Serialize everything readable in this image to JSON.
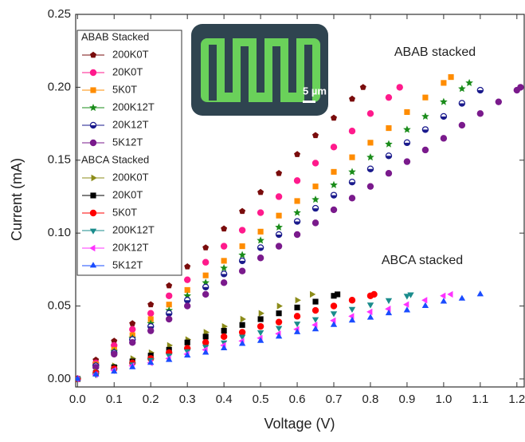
{
  "chart_data": {
    "type": "scatter",
    "xlabel": "Voltage (V)",
    "ylabel": "Current (mA)",
    "xlim": [
      -0.005,
      1.22
    ],
    "ylim": [
      -0.0055,
      0.25
    ],
    "xticks": [
      {
        "value": 0,
        "label": "0.0"
      },
      {
        "value": 0.1,
        "label": "0.1"
      },
      {
        "value": 0.2,
        "label": "0.2"
      },
      {
        "value": 0.3,
        "label": "0.3"
      },
      {
        "value": 0.4,
        "label": "0.4"
      },
      {
        "value": 0.5,
        "label": "0.5"
      },
      {
        "value": 0.6,
        "label": "0.6"
      },
      {
        "value": 0.7,
        "label": "0.7"
      },
      {
        "value": 0.8,
        "label": "0.8"
      },
      {
        "value": 0.9,
        "label": "0.9"
      },
      {
        "value": 1.0,
        "label": "1.0"
      },
      {
        "value": 1.1,
        "label": "1.1"
      },
      {
        "value": 1.2,
        "label": "1.2"
      }
    ],
    "yticks": [
      {
        "value": 0,
        "label": "0.00"
      },
      {
        "value": 0.05,
        "label": "0.05"
      },
      {
        "value": 0.1,
        "label": "0.10"
      },
      {
        "value": 0.15,
        "label": "0.15"
      },
      {
        "value": 0.2,
        "label": "0.20"
      },
      {
        "value": 0.25,
        "label": "0.25"
      }
    ],
    "annotations": [
      "ABAB stacked",
      "ABCA stacked",
      "5 µm"
    ],
    "series_groups": [
      {
        "title": "ABAB Stacked",
        "series": [
          {
            "name": "200K0T",
            "color": "#7a0c0c",
            "marker": "pentagon",
            "x": [
              0,
              0.05,
              0.1,
              0.15,
              0.2,
              0.25,
              0.3,
              0.35,
              0.4,
              0.45,
              0.5,
              0.55,
              0.6,
              0.65,
              0.7,
              0.75,
              0.78
            ],
            "values": [
              0,
              0.013,
              0.026,
              0.038,
              0.051,
              0.064,
              0.077,
              0.09,
              0.103,
              0.115,
              0.128,
              0.141,
              0.154,
              0.167,
              0.179,
              0.192,
              0.2
            ]
          },
          {
            "name": "20K0T",
            "color": "#ff1a8c",
            "marker": "circle",
            "x": [
              0,
              0.05,
              0.1,
              0.15,
              0.2,
              0.25,
              0.3,
              0.35,
              0.4,
              0.45,
              0.5,
              0.55,
              0.6,
              0.65,
              0.7,
              0.75,
              0.8,
              0.85,
              0.88
            ],
            "values": [
              0,
              0.011,
              0.023,
              0.034,
              0.045,
              0.057,
              0.068,
              0.08,
              0.091,
              0.102,
              0.114,
              0.125,
              0.136,
              0.148,
              0.159,
              0.17,
              0.182,
              0.193,
              0.2
            ]
          },
          {
            "name": "5K0T",
            "color": "#ff8c00",
            "marker": "square",
            "x": [
              0,
              0.05,
              0.1,
              0.15,
              0.2,
              0.25,
              0.3,
              0.35,
              0.4,
              0.45,
              0.5,
              0.55,
              0.6,
              0.65,
              0.7,
              0.75,
              0.8,
              0.85,
              0.9,
              0.95,
              1.0,
              1.02
            ],
            "values": [
              0,
              0.01,
              0.02,
              0.03,
              0.041,
              0.051,
              0.061,
              0.071,
              0.081,
              0.091,
              0.101,
              0.112,
              0.122,
              0.132,
              0.142,
              0.152,
              0.162,
              0.172,
              0.183,
              0.193,
              0.203,
              0.207
            ]
          },
          {
            "name": "200K12T",
            "color": "#1a8c1a",
            "marker": "star",
            "x": [
              0,
              0.05,
              0.1,
              0.15,
              0.2,
              0.25,
              0.3,
              0.35,
              0.4,
              0.45,
              0.5,
              0.55,
              0.6,
              0.65,
              0.7,
              0.75,
              0.8,
              0.85,
              0.9,
              0.95,
              1.0,
              1.05,
              1.07
            ],
            "values": [
              0,
              0.009,
              0.019,
              0.028,
              0.038,
              0.047,
              0.057,
              0.066,
              0.076,
              0.085,
              0.095,
              0.104,
              0.114,
              0.123,
              0.133,
              0.142,
              0.152,
              0.161,
              0.171,
              0.18,
              0.19,
              0.199,
              0.203
            ]
          },
          {
            "name": "20K12T",
            "color": "#1a1a8c",
            "marker": "halfcircle",
            "x": [
              0,
              0.05,
              0.1,
              0.15,
              0.2,
              0.25,
              0.3,
              0.35,
              0.4,
              0.45,
              0.5,
              0.55,
              0.6,
              0.65,
              0.7,
              0.75,
              0.8,
              0.85,
              0.9,
              0.95,
              1.0,
              1.05,
              1.1
            ],
            "values": [
              0,
              0.009,
              0.018,
              0.027,
              0.036,
              0.045,
              0.054,
              0.063,
              0.072,
              0.081,
              0.09,
              0.099,
              0.108,
              0.117,
              0.126,
              0.135,
              0.144,
              0.153,
              0.162,
              0.171,
              0.18,
              0.189,
              0.198
            ]
          },
          {
            "name": "5K12T",
            "color": "#7a1a8c",
            "marker": "circle",
            "x": [
              0,
              0.05,
              0.1,
              0.15,
              0.2,
              0.25,
              0.3,
              0.35,
              0.4,
              0.45,
              0.5,
              0.55,
              0.6,
              0.65,
              0.7,
              0.75,
              0.8,
              0.85,
              0.9,
              0.95,
              1.0,
              1.05,
              1.1,
              1.15,
              1.2,
              1.21
            ],
            "values": [
              0,
              0.008,
              0.017,
              0.025,
              0.033,
              0.041,
              0.05,
              0.058,
              0.066,
              0.074,
              0.083,
              0.091,
              0.099,
              0.107,
              0.116,
              0.124,
              0.132,
              0.141,
              0.149,
              0.157,
              0.165,
              0.174,
              0.182,
              0.19,
              0.198,
              0.2
            ]
          }
        ]
      },
      {
        "title": "ABCA Stacked",
        "series": [
          {
            "name": "200K0T",
            "color": "#8c8c1a",
            "marker": "triright",
            "x": [
              0,
              0.05,
              0.1,
              0.15,
              0.2,
              0.25,
              0.3,
              0.35,
              0.4,
              0.45,
              0.5,
              0.55,
              0.6,
              0.64
            ],
            "values": [
              0,
              0.005,
              0.009,
              0.014,
              0.018,
              0.023,
              0.027,
              0.032,
              0.036,
              0.041,
              0.045,
              0.05,
              0.054,
              0.058
            ]
          },
          {
            "name": "20K0T",
            "color": "#000000",
            "marker": "square",
            "x": [
              0,
              0.05,
              0.1,
              0.15,
              0.2,
              0.25,
              0.3,
              0.35,
              0.4,
              0.45,
              0.5,
              0.55,
              0.6,
              0.65,
              0.7,
              0.71
            ],
            "values": [
              0,
              0.004,
              0.008,
              0.012,
              0.016,
              0.02,
              0.025,
              0.029,
              0.033,
              0.037,
              0.041,
              0.045,
              0.049,
              0.053,
              0.057,
              0.058
            ]
          },
          {
            "name": "5K0T",
            "color": "#ff0000",
            "marker": "circle",
            "x": [
              0,
              0.05,
              0.1,
              0.15,
              0.2,
              0.25,
              0.3,
              0.35,
              0.4,
              0.45,
              0.5,
              0.55,
              0.6,
              0.65,
              0.7,
              0.75,
              0.8,
              0.81
            ],
            "values": [
              0,
              0.004,
              0.007,
              0.011,
              0.014,
              0.018,
              0.021,
              0.025,
              0.029,
              0.032,
              0.036,
              0.039,
              0.043,
              0.047,
              0.05,
              0.054,
              0.057,
              0.058
            ]
          },
          {
            "name": "200K12T",
            "color": "#1a8c8c",
            "marker": "tridown",
            "x": [
              0,
              0.05,
              0.1,
              0.15,
              0.2,
              0.25,
              0.3,
              0.35,
              0.4,
              0.45,
              0.5,
              0.55,
              0.6,
              0.65,
              0.7,
              0.75,
              0.8,
              0.85,
              0.9,
              0.91
            ],
            "values": [
              0,
              0.003,
              0.006,
              0.01,
              0.013,
              0.016,
              0.019,
              0.022,
              0.025,
              0.029,
              0.032,
              0.035,
              0.038,
              0.041,
              0.045,
              0.048,
              0.051,
              0.054,
              0.057,
              0.058
            ]
          },
          {
            "name": "20K12T",
            "color": "#ff33ff",
            "marker": "trileft",
            "x": [
              0,
              0.05,
              0.1,
              0.15,
              0.2,
              0.25,
              0.3,
              0.35,
              0.4,
              0.45,
              0.5,
              0.55,
              0.6,
              0.65,
              0.7,
              0.75,
              0.8,
              0.85,
              0.9,
              0.95,
              1.0,
              1.02
            ],
            "values": [
              0,
              0.003,
              0.006,
              0.009,
              0.011,
              0.014,
              0.017,
              0.02,
              0.023,
              0.026,
              0.028,
              0.031,
              0.034,
              0.037,
              0.04,
              0.043,
              0.046,
              0.048,
              0.051,
              0.054,
              0.057,
              0.058
            ]
          },
          {
            "name": "5K12T",
            "color": "#1a4cff",
            "marker": "triup",
            "x": [
              0,
              0.05,
              0.1,
              0.15,
              0.2,
              0.25,
              0.3,
              0.35,
              0.4,
              0.45,
              0.5,
              0.55,
              0.6,
              0.65,
              0.7,
              0.75,
              0.8,
              0.85,
              0.9,
              0.95,
              1.0,
              1.05,
              1.1
            ],
            "values": [
              0,
              0.003,
              0.005,
              0.008,
              0.011,
              0.013,
              0.016,
              0.018,
              0.021,
              0.024,
              0.026,
              0.029,
              0.032,
              0.034,
              0.037,
              0.04,
              0.042,
              0.045,
              0.047,
              0.05,
              0.053,
              0.055,
              0.058
            ]
          }
        ]
      }
    ]
  }
}
